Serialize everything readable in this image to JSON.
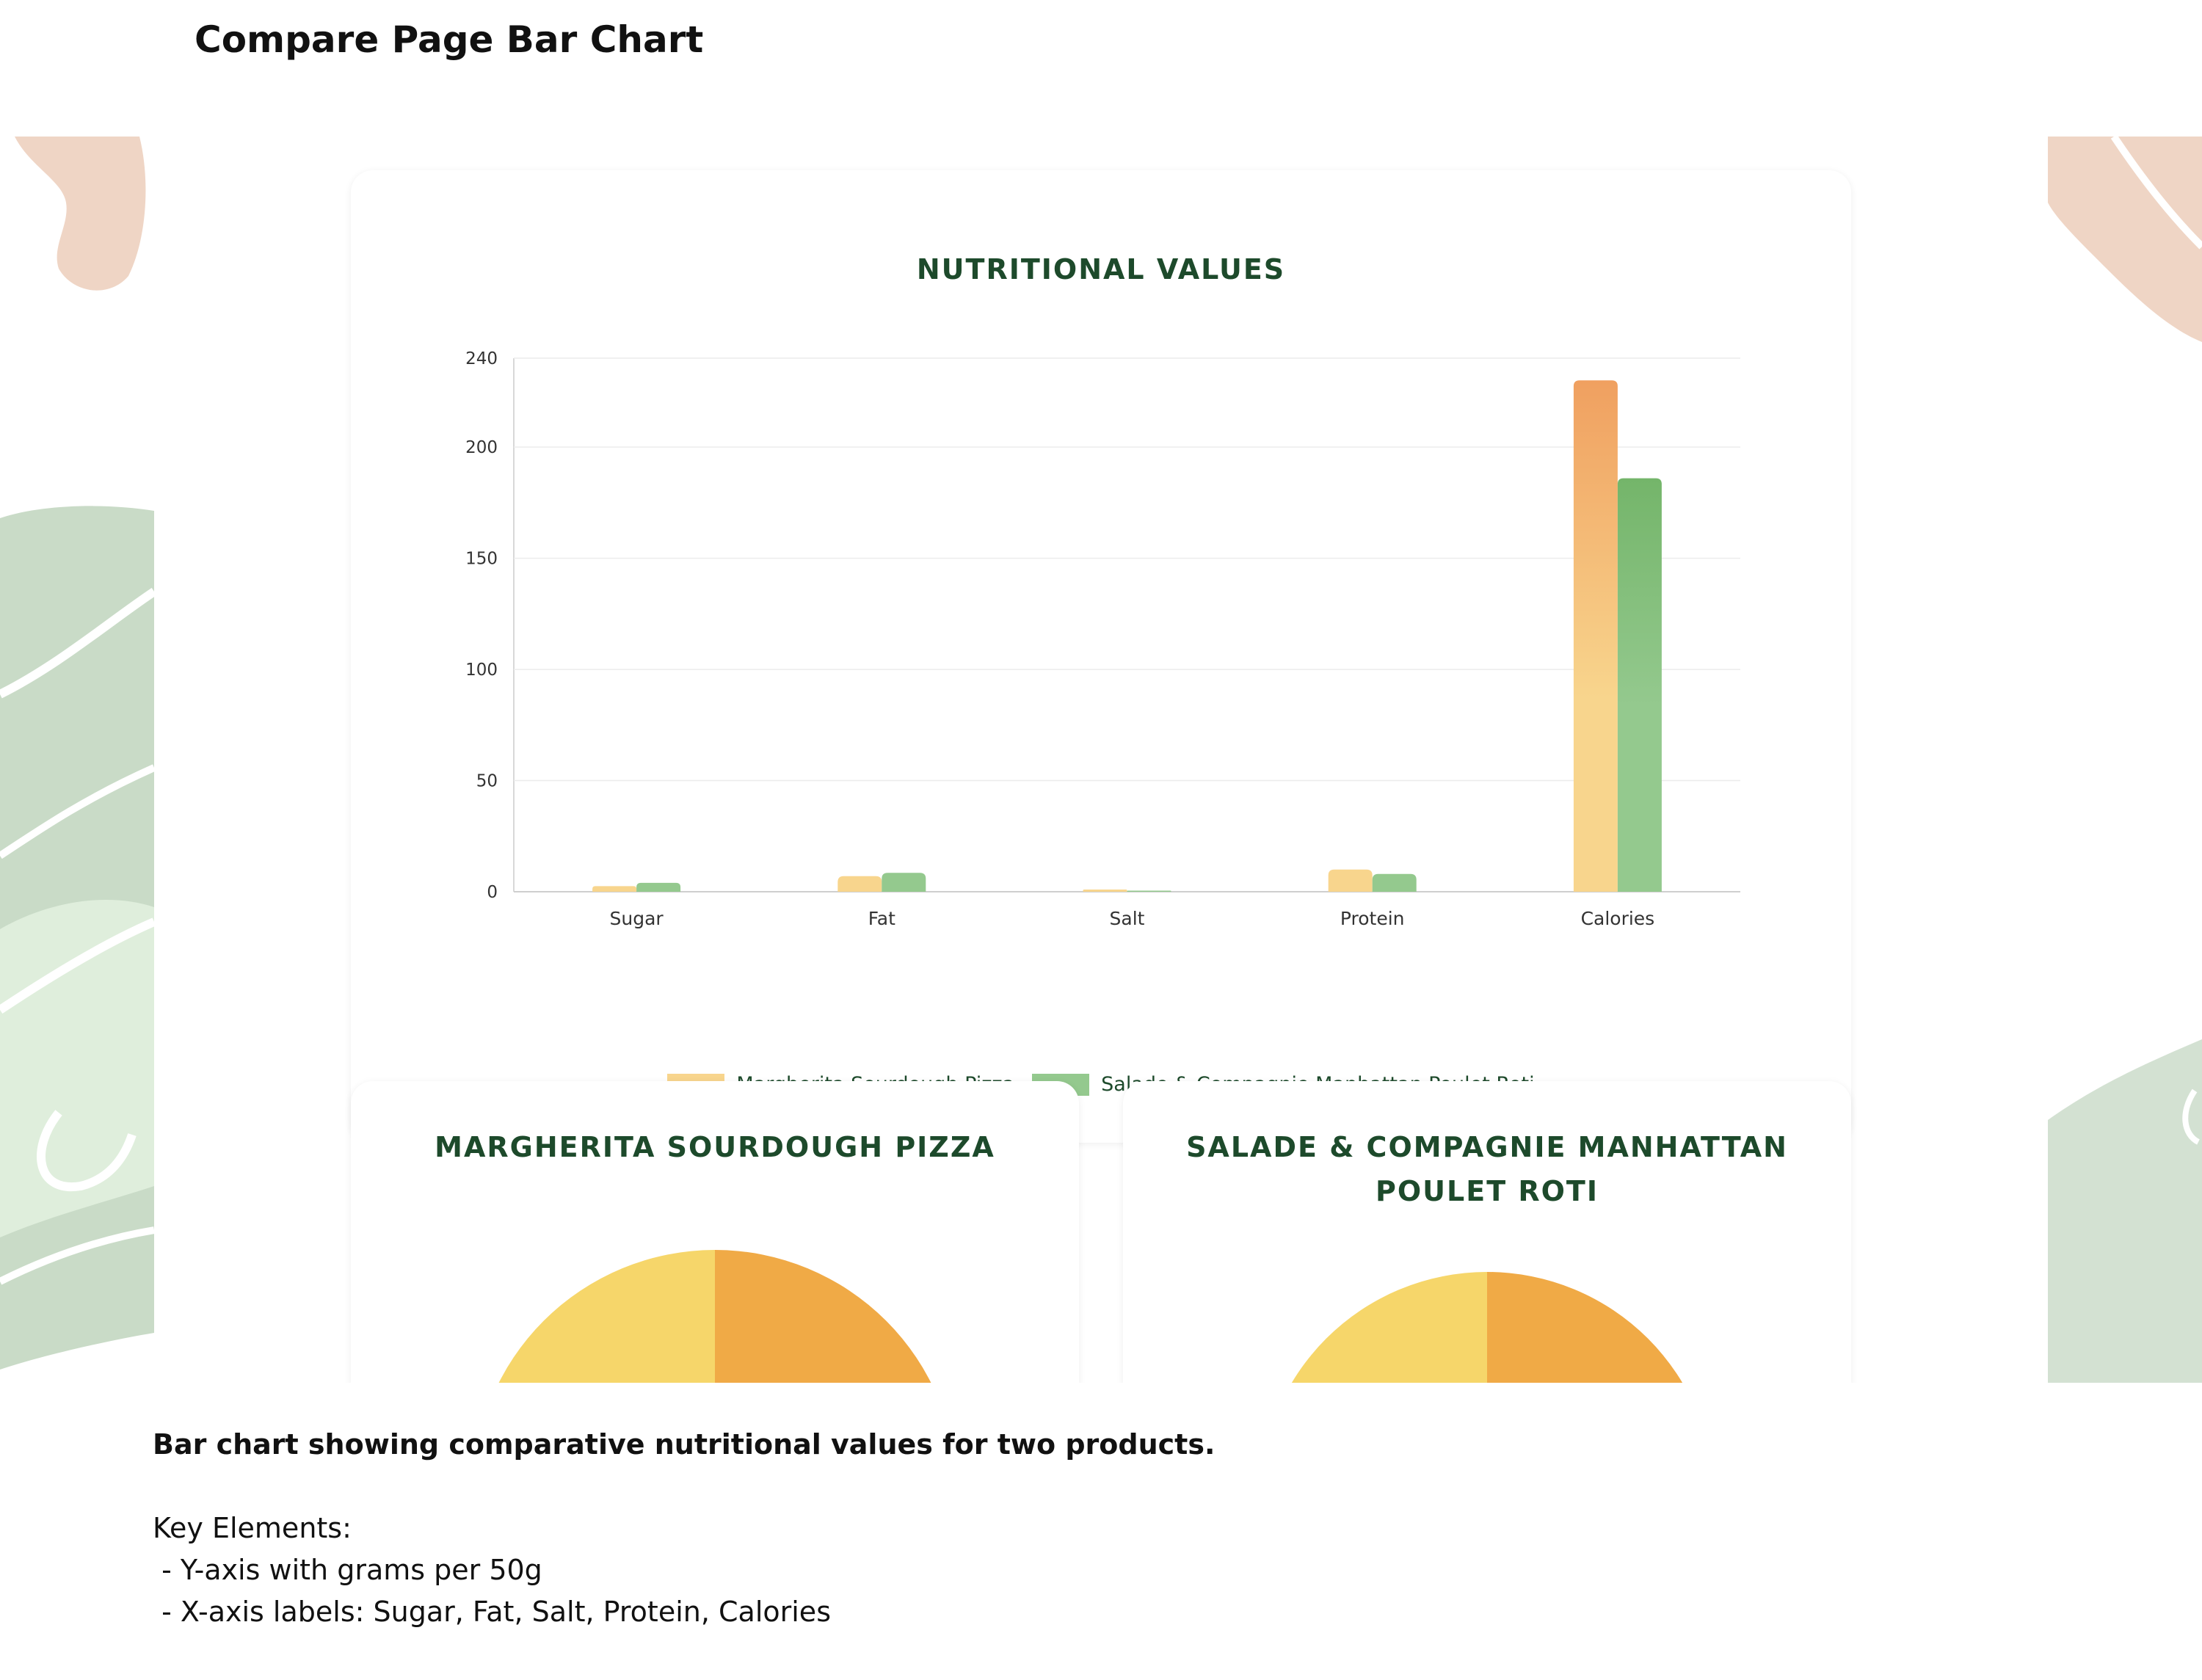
{
  "page": {
    "title": "Compare Page Bar Chart"
  },
  "colors": {
    "card_title": "#1d4a2b",
    "series_a_light": "#f8d58d",
    "series_a_dark": "#f0a060",
    "series_b_light": "#94c98e",
    "series_b_dark": "#74b56a",
    "pie_yellow": "#f6d66a",
    "pie_orange": "#f0aa46"
  },
  "chart_card": {
    "title": "NUTRITIONAL VALUES"
  },
  "chart_data": {
    "type": "bar",
    "title": "NUTRITIONAL VALUES",
    "xlabel": "",
    "ylabel": "",
    "categories": [
      "Sugar",
      "Fat",
      "Salt",
      "Protein",
      "Calories"
    ],
    "series": [
      {
        "name": "Margherita Sourdough Pizza",
        "values": [
          2.5,
          7,
          1,
          10,
          230
        ]
      },
      {
        "name": "Salade & Compagnie Manhattan Poulet Roti",
        "values": [
          4,
          8.5,
          0.5,
          8,
          186
        ]
      }
    ],
    "ylim": [
      0,
      240
    ],
    "yticks": [
      "0",
      "50",
      "100",
      "150",
      "200",
      "240"
    ],
    "grid": true,
    "legend_position": "bottom"
  },
  "pie_cards": [
    {
      "title": "MARGHERITA SOURDOUGH PIZZA"
    },
    {
      "title": "SALADE & COMPAGNIE MANHATTAN POULET ROTI"
    }
  ],
  "description": {
    "heading": "Bar chart showing comparative nutritional values for two products.",
    "key_label": "Key Elements:",
    "items": [
      " - Y-axis with grams per 50g",
      " - X-axis labels: Sugar, Fat, Salt, Protein, Calories"
    ]
  }
}
